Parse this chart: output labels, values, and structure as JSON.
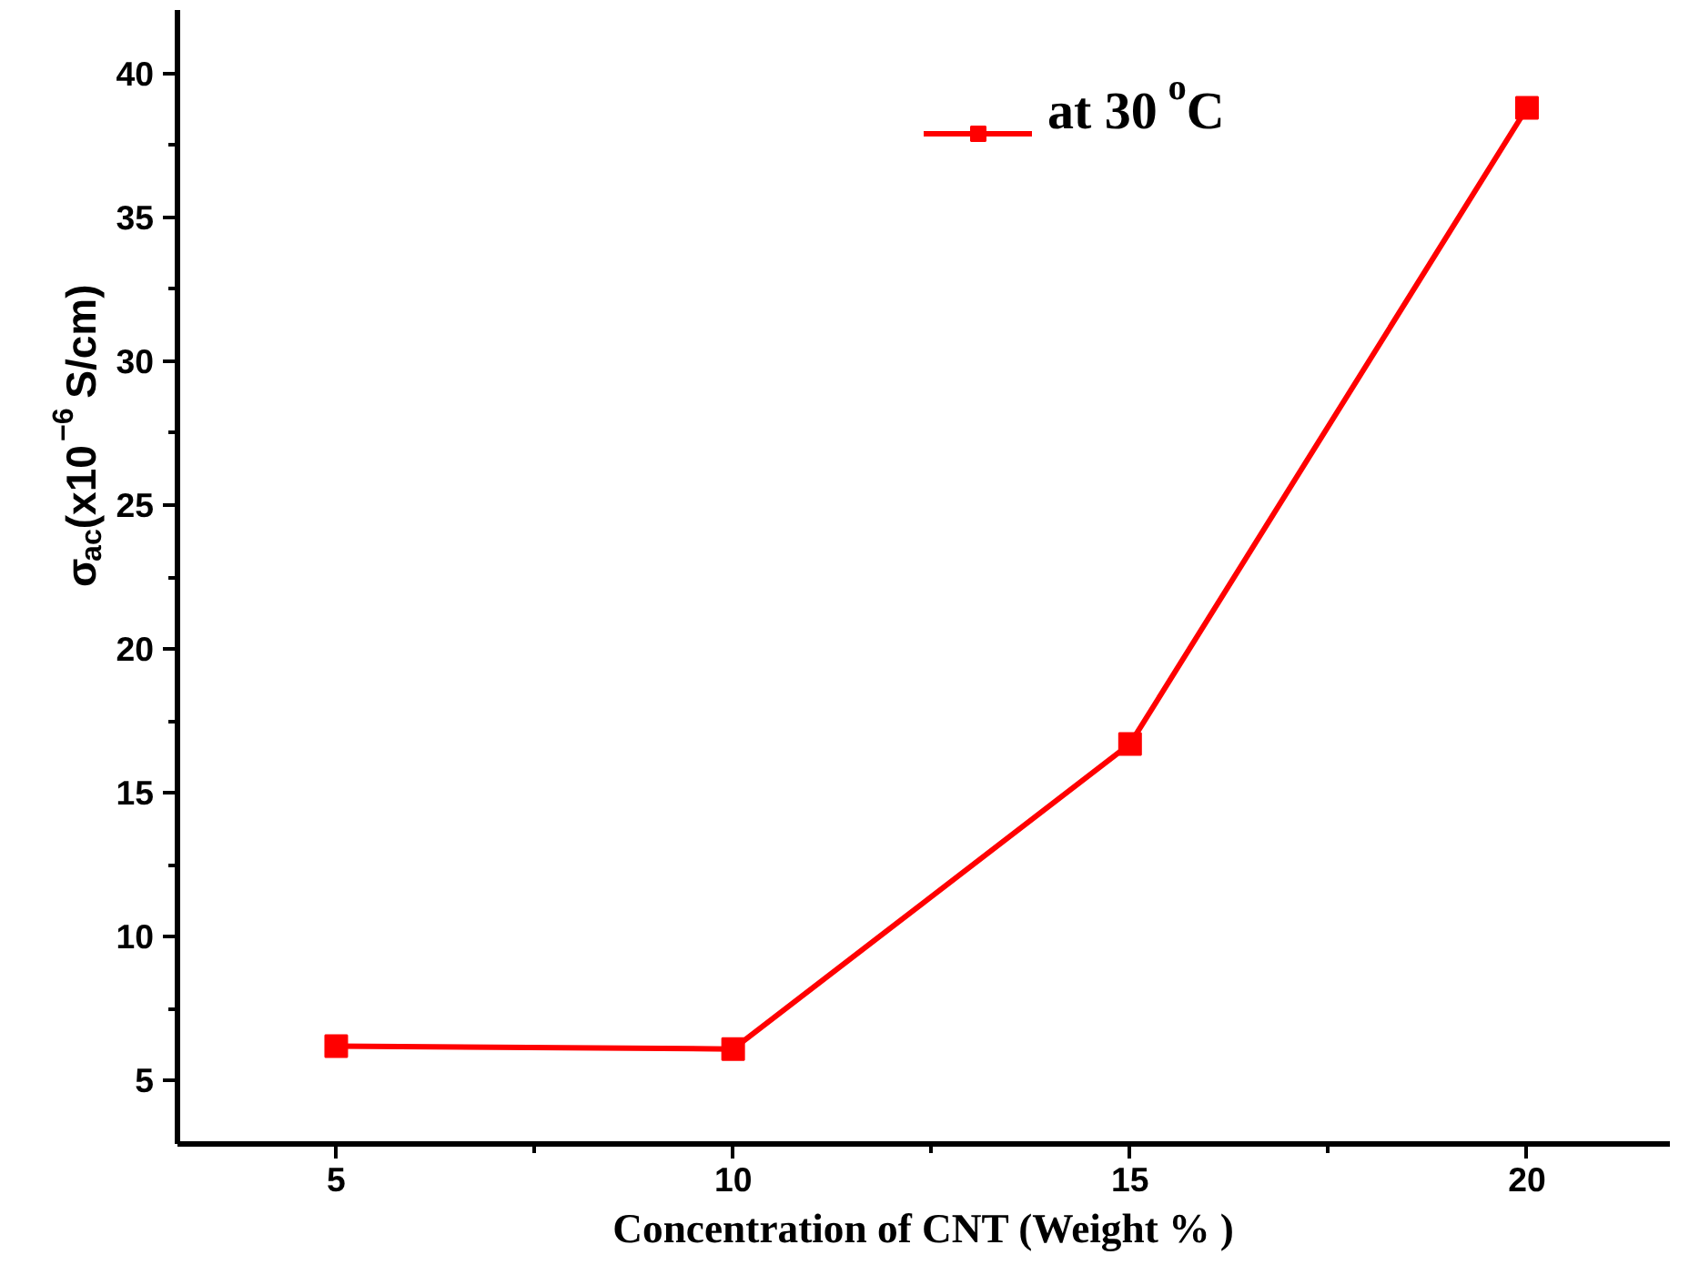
{
  "chart_data": {
    "type": "line",
    "xlabel": "Concentration of CNT (Weight % )",
    "ylabel": "σ$_{ac}$(x10$^{−6}$ S/cm)",
    "x": [
      5,
      10,
      15,
      20
    ],
    "series": [
      {
        "name": "at 30$^{o}$C",
        "color": "#ff0000",
        "values": [
          6.2,
          6.1,
          16.7,
          38.8
        ]
      }
    ],
    "xlim": [
      3,
      21.8
    ],
    "ylim": [
      2.8,
      42.2
    ],
    "xticks": [
      5,
      10,
      15,
      20
    ],
    "yticks": [
      5,
      10,
      15,
      20,
      25,
      30,
      35,
      40
    ],
    "marker": "square",
    "line_style": "solid",
    "legend": "top right",
    "grid": false
  }
}
